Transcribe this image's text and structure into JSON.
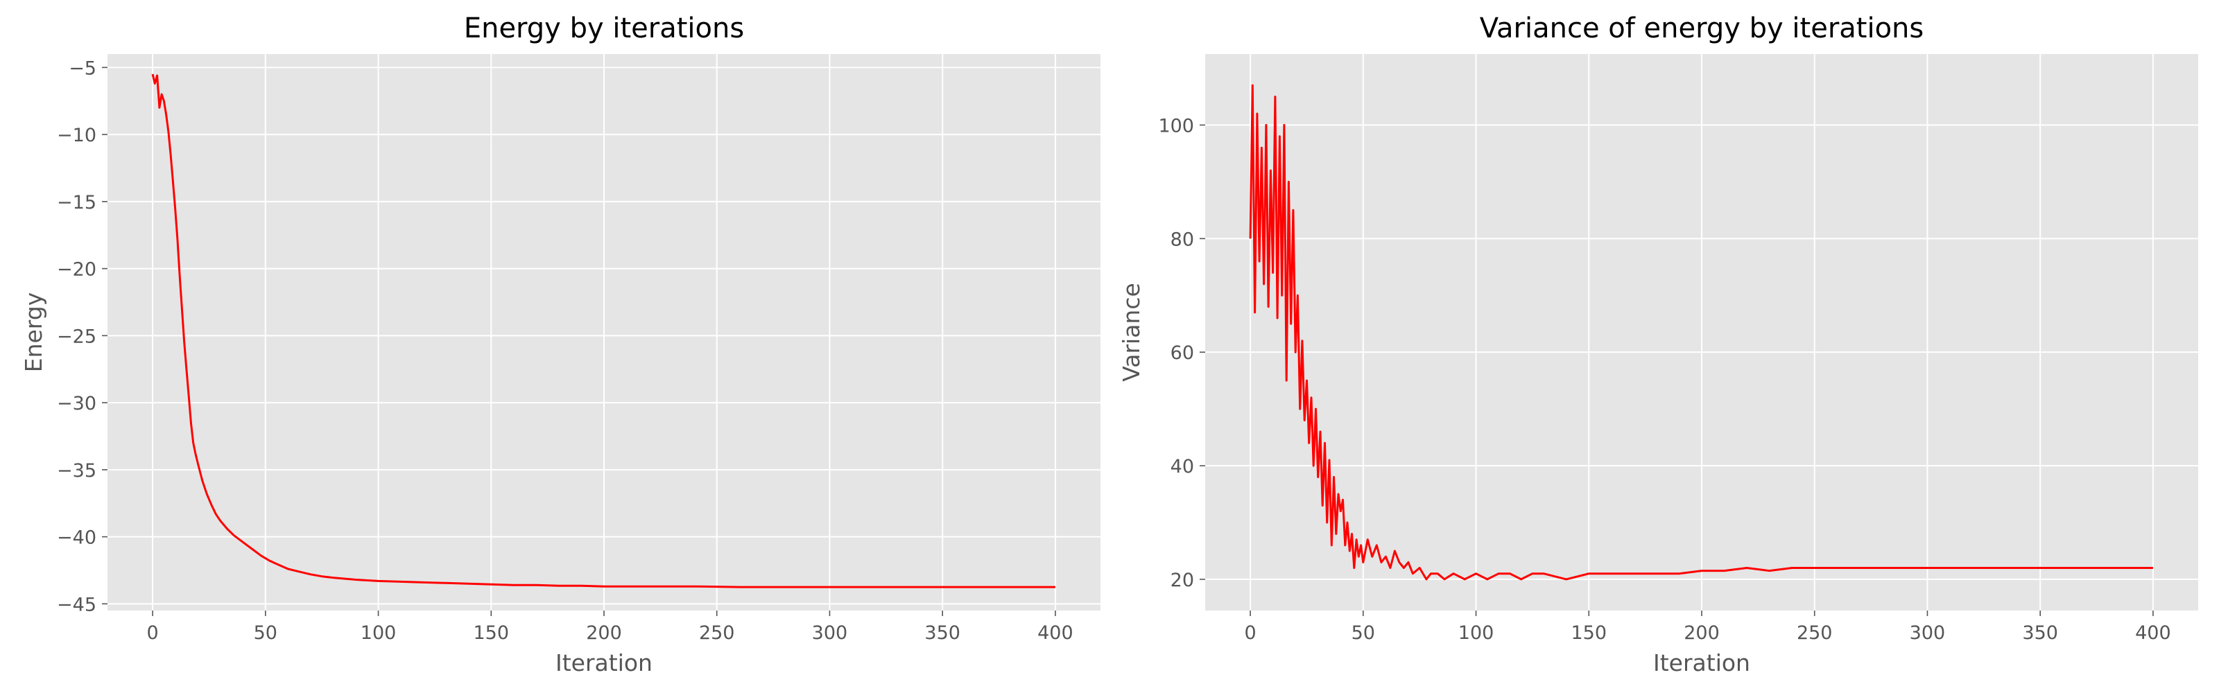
{
  "chart_data": [
    {
      "type": "line",
      "title": "Energy by iterations",
      "xlabel": "Iteration",
      "ylabel": "Energy",
      "xlim": [
        -20,
        420
      ],
      "ylim": [
        -45.5,
        -4
      ],
      "xticks": [
        0,
        50,
        100,
        150,
        200,
        250,
        300,
        350,
        400
      ],
      "yticks": [
        -5,
        -10,
        -15,
        -20,
        -25,
        -30,
        -35,
        -40,
        -45
      ],
      "grid": true,
      "color": "#ff0000",
      "series": [
        {
          "x": [
            0,
            1,
            2,
            3,
            4,
            5,
            6,
            7,
            8,
            9,
            10,
            11,
            12,
            13,
            14,
            15,
            16,
            17,
            18,
            19,
            20,
            22,
            24,
            26,
            28,
            30,
            33,
            36,
            40,
            44,
            48,
            52,
            56,
            60,
            65,
            70,
            75,
            80,
            90,
            100,
            110,
            120,
            130,
            140,
            150,
            160,
            170,
            180,
            190,
            200,
            220,
            240,
            260,
            280,
            300,
            320,
            340,
            360,
            380,
            400
          ],
          "y": [
            -5.5,
            -6.2,
            -5.6,
            -8.0,
            -7.0,
            -7.5,
            -8.5,
            -9.8,
            -11.5,
            -13.5,
            -15.5,
            -17.8,
            -20.5,
            -23.0,
            -25.5,
            -27.5,
            -29.5,
            -31.5,
            -33.0,
            -33.8,
            -34.5,
            -35.8,
            -36.8,
            -37.6,
            -38.3,
            -38.8,
            -39.4,
            -39.9,
            -40.4,
            -40.9,
            -41.4,
            -41.8,
            -42.1,
            -42.4,
            -42.6,
            -42.8,
            -42.95,
            -43.05,
            -43.2,
            -43.3,
            -43.35,
            -43.4,
            -43.45,
            -43.5,
            -43.55,
            -43.6,
            -43.6,
            -43.65,
            -43.65,
            -43.7,
            -43.7,
            -43.7,
            -43.75,
            -43.75,
            -43.75,
            -43.75,
            -43.75,
            -43.75,
            -43.75,
            -43.75
          ]
        }
      ]
    },
    {
      "type": "line",
      "title": "Variance of energy by iterations",
      "xlabel": "Iteration",
      "ylabel": "Variance",
      "xlim": [
        -20,
        420
      ],
      "ylim": [
        14.5,
        112.5
      ],
      "xticks": [
        0,
        50,
        100,
        150,
        200,
        250,
        300,
        350,
        400
      ],
      "yticks": [
        20,
        40,
        60,
        80,
        100
      ],
      "grid": true,
      "color": "#ff0000",
      "series": [
        {
          "x": [
            0,
            1,
            2,
            3,
            4,
            5,
            6,
            7,
            8,
            9,
            10,
            11,
            12,
            13,
            14,
            15,
            16,
            17,
            18,
            19,
            20,
            21,
            22,
            23,
            24,
            25,
            26,
            27,
            28,
            29,
            30,
            31,
            32,
            33,
            34,
            35,
            36,
            37,
            38,
            39,
            40,
            41,
            42,
            43,
            44,
            45,
            46,
            47,
            48,
            49,
            50,
            52,
            54,
            56,
            58,
            60,
            62,
            64,
            66,
            68,
            70,
            72,
            75,
            78,
            80,
            83,
            86,
            90,
            95,
            100,
            105,
            110,
            115,
            120,
            125,
            130,
            140,
            150,
            160,
            170,
            180,
            190,
            200,
            210,
            220,
            230,
            240,
            250,
            260,
            270,
            280,
            290,
            300,
            310,
            320,
            330,
            340,
            350,
            360,
            370,
            380,
            390,
            400
          ],
          "y": [
            80,
            107,
            67,
            102,
            76,
            96,
            72,
            100,
            68,
            92,
            74,
            105,
            66,
            98,
            70,
            100,
            55,
            90,
            65,
            85,
            60,
            70,
            50,
            62,
            48,
            55,
            44,
            52,
            40,
            50,
            38,
            46,
            33,
            44,
            30,
            41,
            26,
            38,
            28,
            35,
            32,
            34,
            26,
            30,
            25,
            28,
            22,
            27,
            24,
            26,
            23,
            27,
            24,
            26,
            23,
            24,
            22,
            25,
            23,
            22,
            23,
            21,
            22,
            20,
            21,
            21,
            20,
            21,
            20,
            21,
            20,
            21,
            21,
            20,
            21,
            21,
            20,
            21,
            21,
            21,
            21,
            21,
            21.5,
            21.5,
            22,
            21.5,
            22,
            22,
            22,
            22,
            22,
            22,
            22,
            22,
            22,
            22,
            22,
            22,
            22,
            22,
            22,
            22,
            22
          ]
        }
      ]
    }
  ]
}
